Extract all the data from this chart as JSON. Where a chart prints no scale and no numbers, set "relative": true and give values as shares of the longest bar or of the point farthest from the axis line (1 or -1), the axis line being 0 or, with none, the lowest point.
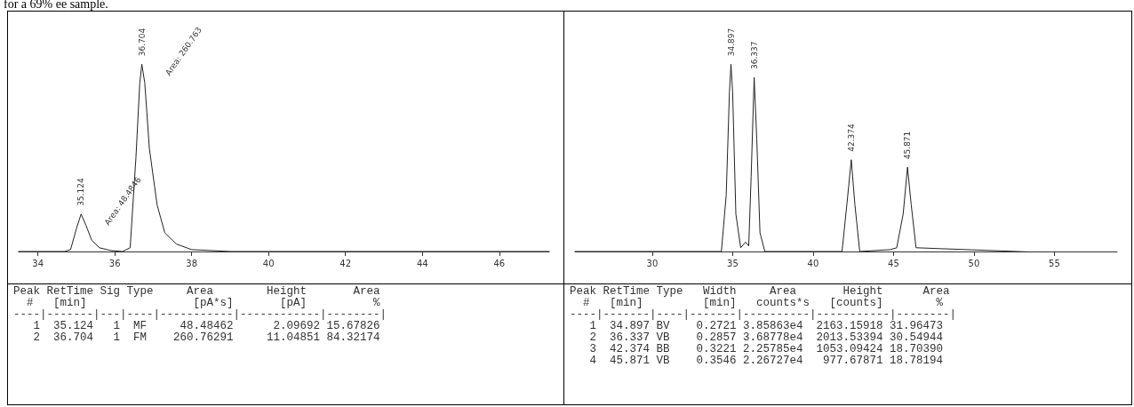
{
  "chart_data": [
    {
      "type": "line",
      "relative": true,
      "marker": "none",
      "grid": false,
      "x": [
        33.5,
        34.7,
        34.85,
        35.0,
        35.124,
        35.25,
        35.4,
        35.6,
        35.9,
        36.2,
        36.4,
        36.55,
        36.65,
        36.704,
        36.78,
        36.9,
        37.1,
        37.3,
        37.6,
        38.0,
        39.0,
        47.3
      ],
      "series": [
        {
          "color": "#222222",
          "values": [
            0,
            0,
            0.01,
            0.12,
            0.2,
            0.14,
            0.06,
            0.02,
            0.005,
            0,
            0.02,
            0.5,
            0.9,
            1,
            0.9,
            0.55,
            0.25,
            0.1,
            0.04,
            0.01,
            0,
            0
          ]
        }
      ],
      "xlim": [
        33.5,
        47.3
      ],
      "xticks": [
        34,
        36,
        38,
        40,
        42,
        44,
        46
      ],
      "annotations": [
        "for a 69% ee sample.",
        "Peak RetTime Sig Type     Area        Height       Area",
        "  #   [min]                [pA*s]       [pA]          %",
        "----|-------|---|----|-----------|------------|--------|",
        "   1  35.124   1  MF     48.48462      2.09692 15.67826",
        "   2  36.704   1  FM    260.76291     11.04851 84.32174",
        {
          "text": "35.124",
          "x": 35.124,
          "y": 0.2
        },
        "Area: 48.4846",
        {
          "text": "36.704",
          "x": 36.704,
          "y": 1
        },
        "Area: 260.763"
      ]
    },
    {
      "type": "line",
      "relative": true,
      "marker": "none",
      "grid": false,
      "x": [
        25.2,
        34.3,
        34.6,
        34.8,
        34.897,
        35.0,
        35.2,
        35.5,
        35.8,
        36.0,
        36.15,
        36.337,
        36.5,
        36.7,
        37.0,
        41.8,
        42.1,
        42.374,
        42.6,
        42.9,
        44.8,
        45.2,
        45.6,
        45.871,
        46.1,
        46.4,
        58.9
      ],
      "series": [
        {
          "color": "#222222",
          "values": [
            0,
            0,
            0.3,
            0.85,
            1,
            0.85,
            0.2,
            0.02,
            0.05,
            0.03,
            0.4,
            0.93,
            0.6,
            0.1,
            0,
            0,
            0.25,
            0.49,
            0.25,
            0,
            0.01,
            0.02,
            0.2,
            0.45,
            0.25,
            0.02,
            -0.02
          ]
        }
      ],
      "xlim": [
        25.2,
        58.9
      ],
      "xticks": [
        30,
        35,
        40,
        45,
        50,
        55
      ],
      "annotations": [
        "Peak RetTime Type   Width     Area       Height      Area",
        "  #   [min]         [min]   counts*s   [counts]        %",
        "----|-------|----|-------|----------|-----------|--------|",
        "   1  34.897 BV    0.2721 3.85863e4  2163.15918 31.96473",
        "   2  36.337 VB    0.2857 3.68778e4  2013.53394 30.54944",
        "   3  42.374 BB    0.3221 2.25785e4  1053.09424 18.70390",
        "   4  45.871 VB    0.3546 2.26727e4   977.67871 18.78194",
        {
          "text": "34.897",
          "x": 34.897,
          "y": 1
        },
        {
          "text": "36.337",
          "x": 36.337,
          "y": 0.93
        },
        {
          "text": "42.374",
          "x": 42.374,
          "y": 0.49
        },
        {
          "text": "45.871",
          "x": 45.871,
          "y": 0.45
        }
      ]
    }
  ]
}
